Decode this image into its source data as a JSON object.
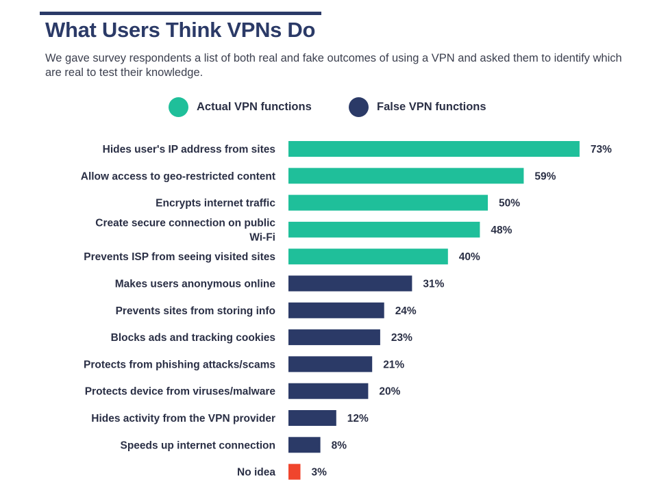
{
  "header": {
    "title": "What Users Think VPNs Do",
    "subtitle": "We gave survey respondents a list of both real and fake outcomes of using a VPN and asked them to identify which are real to test their knowledge."
  },
  "legend": [
    {
      "label": "Actual VPN functions",
      "color": "#1fbf9a"
    },
    {
      "label": "False VPN functions",
      "color": "#2b3a67"
    }
  ],
  "chart_data": {
    "type": "bar",
    "orientation": "horizontal",
    "title": "What Users Think VPNs Do",
    "xlim": [
      0,
      100
    ],
    "grid": false,
    "legend_position": "top",
    "value_suffix": "%",
    "categories": [
      [
        "Hides user's IP address from sites"
      ],
      [
        "Allow access to geo-restricted content"
      ],
      [
        "Encrypts internet traffic"
      ],
      [
        "Create secure connection on public",
        "Wi-Fi"
      ],
      [
        "Prevents ISP from seeing visited sites"
      ],
      [
        "Makes users anonymous online"
      ],
      [
        "Prevents sites from storing info"
      ],
      [
        "Blocks ads and tracking cookies"
      ],
      [
        "Protects from phishing attacks/scams"
      ],
      [
        "Protects device from viruses/malware"
      ],
      [
        "Hides activity from the VPN provider"
      ],
      [
        "Speeds up internet connection"
      ],
      [
        "No idea"
      ]
    ],
    "values": [
      73,
      59,
      50,
      48,
      40,
      31,
      24,
      23,
      21,
      20,
      12,
      8,
      3
    ],
    "groups": [
      "Actual VPN functions",
      "Actual VPN functions",
      "Actual VPN functions",
      "Actual VPN functions",
      "Actual VPN functions",
      "False VPN functions",
      "False VPN functions",
      "False VPN functions",
      "False VPN functions",
      "False VPN functions",
      "False VPN functions",
      "False VPN functions",
      "No idea"
    ],
    "colors": {
      "Actual VPN functions": "#1fbf9a",
      "False VPN functions": "#2b3a67",
      "No idea": "#f0452d"
    }
  }
}
